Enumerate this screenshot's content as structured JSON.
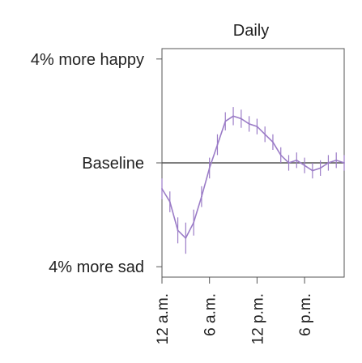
{
  "chart_data": {
    "type": "line",
    "title": "Daily",
    "xlabel": "",
    "ylabel": "",
    "x_ticks": [
      {
        "label": "12 a.m.",
        "value": 0
      },
      {
        "label": "6 a.m.",
        "value": 6
      },
      {
        "label": "12 p.m.",
        "value": 12
      },
      {
        "label": "6 p.m.",
        "value": 18
      }
    ],
    "y_ticks": [
      {
        "label": "4% more happy",
        "value": 4
      },
      {
        "label": "Baseline",
        "value": 0
      },
      {
        "label": "4% more sad",
        "value": -4
      }
    ],
    "xlim": [
      0,
      23
    ],
    "ylim": [
      -4.4,
      4.4
    ],
    "baseline": 0,
    "grid": false,
    "legend": "none",
    "line_color": "#9b7cc7",
    "baseline_color": "#555555",
    "series": [
      {
        "x": [
          0,
          1,
          2,
          3,
          4,
          5,
          6,
          7,
          8,
          9,
          10,
          11,
          12,
          13,
          14,
          15,
          16,
          17,
          18,
          19,
          20,
          21,
          22,
          23
        ],
        "y": [
          -1.0,
          -1.5,
          -2.6,
          -2.9,
          -2.3,
          -1.3,
          -0.2,
          0.7,
          1.6,
          1.8,
          1.7,
          1.5,
          1.4,
          1.1,
          0.8,
          0.3,
          0.0,
          0.1,
          -0.1,
          -0.3,
          -0.2,
          0.0,
          0.1,
          0.0
        ],
        "err": [
          0.4,
          0.4,
          0.5,
          0.6,
          0.5,
          0.4,
          0.4,
          0.4,
          0.35,
          0.35,
          0.35,
          0.3,
          0.3,
          0.3,
          0.3,
          0.3,
          0.3,
          0.3,
          0.3,
          0.3,
          0.3,
          0.3,
          0.3,
          0.3
        ]
      }
    ]
  }
}
